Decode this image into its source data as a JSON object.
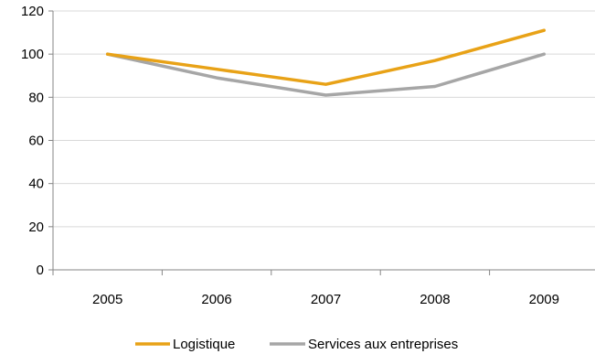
{
  "chart_data": {
    "type": "line",
    "categories": [
      "2005",
      "2006",
      "2007",
      "2008",
      "2009"
    ],
    "series": [
      {
        "name": "Logistique",
        "values": [
          100,
          93,
          86,
          97,
          111
        ],
        "color": "#E8A217"
      },
      {
        "name": "Services aux entreprises",
        "values": [
          100,
          89,
          81,
          85,
          100
        ],
        "color": "#A6A6A6"
      }
    ],
    "ylim": [
      0,
      120
    ],
    "yticks": [
      0,
      20,
      40,
      60,
      80,
      100,
      120
    ],
    "grid": true,
    "legend_position": "bottom"
  }
}
